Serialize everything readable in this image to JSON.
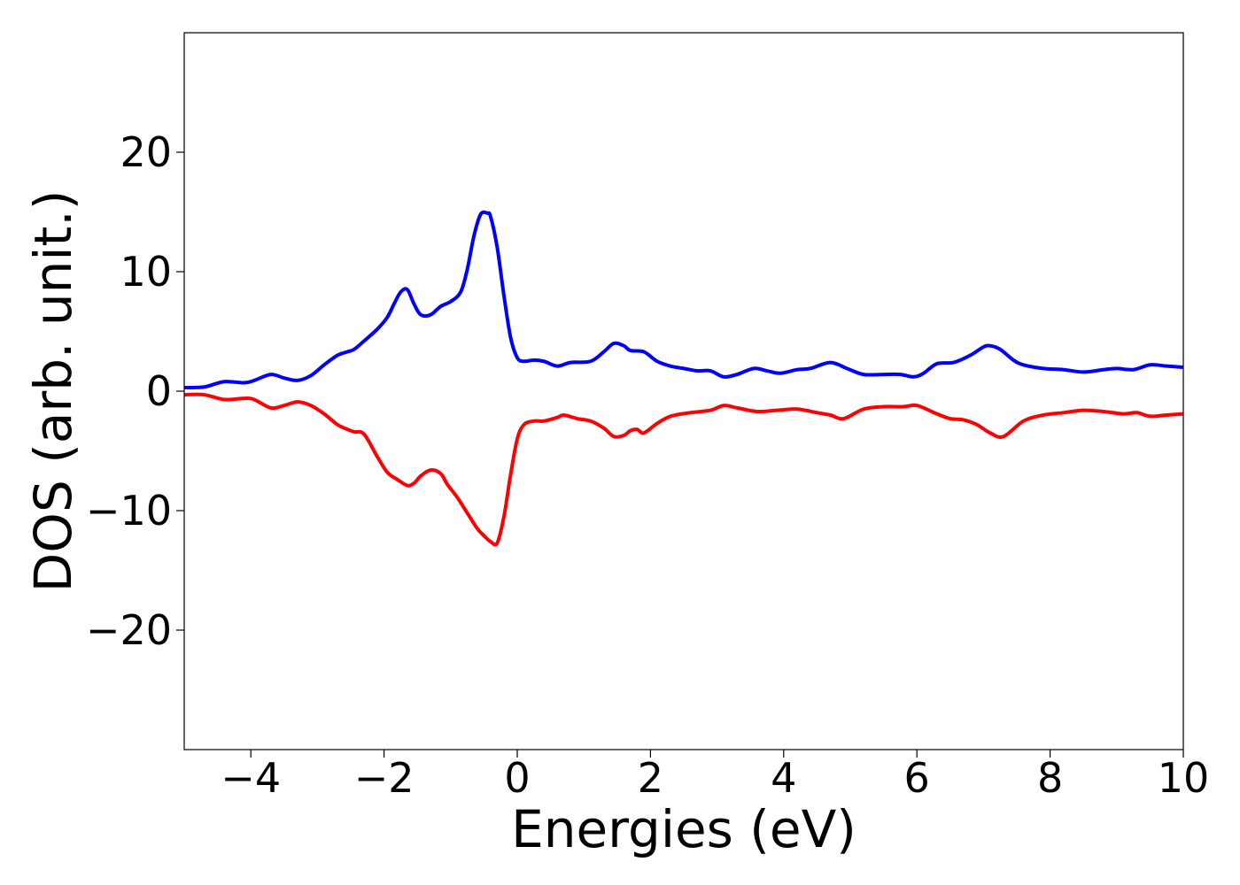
{
  "chart_data": {
    "type": "line",
    "title": "",
    "xlabel": "Energies (eV)",
    "ylabel": "DOS (arb. unit.)",
    "xlim": [
      -5,
      10
    ],
    "ylim": [
      -30,
      30
    ],
    "xticks": [
      -4,
      -2,
      0,
      2,
      4,
      6,
      8,
      10
    ],
    "xtick_labels": [
      "−4",
      "−2",
      "0",
      "2",
      "4",
      "6",
      "8",
      "10"
    ],
    "yticks": [
      -20,
      -10,
      0,
      10,
      20
    ],
    "ytick_labels": [
      "−20",
      "−10",
      "0",
      "10",
      "20"
    ],
    "grid": false,
    "series": [
      {
        "color": "#0000ff",
        "x": [
          -5.0,
          -4.7,
          -4.4,
          -4.1,
          -3.95,
          -3.7,
          -3.5,
          -3.3,
          -3.1,
          -2.9,
          -2.7,
          -2.55,
          -2.45,
          -2.3,
          -2.1,
          -1.95,
          -1.85,
          -1.75,
          -1.65,
          -1.55,
          -1.45,
          -1.3,
          -1.15,
          -1.0,
          -0.85,
          -0.75,
          -0.65,
          -0.55,
          -0.45,
          -0.4,
          -0.3,
          -0.2,
          -0.1,
          0.0,
          0.1,
          0.25,
          0.4,
          0.6,
          0.8,
          1.1,
          1.3,
          1.45,
          1.6,
          1.7,
          1.9,
          2.1,
          2.3,
          2.5,
          2.7,
          2.9,
          3.1,
          3.3,
          3.55,
          3.75,
          3.95,
          4.2,
          4.4,
          4.7,
          4.95,
          5.2,
          5.5,
          5.75,
          5.95,
          6.1,
          6.3,
          6.55,
          6.8,
          7.0,
          7.1,
          7.25,
          7.45,
          7.6,
          7.9,
          8.2,
          8.5,
          8.8,
          9.0,
          9.25,
          9.5,
          9.75,
          10.0
        ],
        "values": [
          0.3,
          0.35,
          0.8,
          0.7,
          0.9,
          1.4,
          1.1,
          0.9,
          1.3,
          2.2,
          3.0,
          3.3,
          3.5,
          4.2,
          5.2,
          6.2,
          7.3,
          8.3,
          8.5,
          7.3,
          6.4,
          6.4,
          7.1,
          7.5,
          8.3,
          10.2,
          13.0,
          14.8,
          14.9,
          14.6,
          12.0,
          8.0,
          4.5,
          2.8,
          2.5,
          2.6,
          2.5,
          2.1,
          2.4,
          2.5,
          3.3,
          4.0,
          3.8,
          3.4,
          3.3,
          2.5,
          2.1,
          1.9,
          1.7,
          1.7,
          1.2,
          1.4,
          1.9,
          1.7,
          1.5,
          1.8,
          1.9,
          2.4,
          1.9,
          1.4,
          1.4,
          1.4,
          1.2,
          1.5,
          2.3,
          2.4,
          3.0,
          3.7,
          3.8,
          3.5,
          2.6,
          2.2,
          1.9,
          1.8,
          1.6,
          1.8,
          1.9,
          1.8,
          2.2,
          2.1,
          2.0
        ]
      },
      {
        "color": "#ff0000",
        "x": [
          -5.0,
          -4.7,
          -4.4,
          -4.1,
          -3.95,
          -3.7,
          -3.5,
          -3.3,
          -3.1,
          -2.9,
          -2.7,
          -2.55,
          -2.45,
          -2.3,
          -2.1,
          -1.95,
          -1.8,
          -1.65,
          -1.55,
          -1.45,
          -1.3,
          -1.15,
          -1.05,
          -0.9,
          -0.75,
          -0.6,
          -0.5,
          -0.4,
          -0.3,
          -0.2,
          -0.1,
          0.0,
          0.1,
          0.25,
          0.4,
          0.6,
          0.7,
          0.9,
          1.1,
          1.3,
          1.45,
          1.6,
          1.7,
          1.8,
          1.9,
          2.1,
          2.3,
          2.6,
          2.9,
          3.1,
          3.3,
          3.6,
          3.9,
          4.2,
          4.5,
          4.7,
          4.9,
          5.2,
          5.5,
          5.8,
          6.0,
          6.3,
          6.5,
          6.7,
          6.9,
          7.1,
          7.3,
          7.6,
          7.9,
          8.2,
          8.5,
          8.8,
          9.1,
          9.3,
          9.5,
          9.75,
          10.0
        ],
        "values": [
          -0.3,
          -0.3,
          -0.7,
          -0.6,
          -0.7,
          -1.4,
          -1.2,
          -0.9,
          -1.2,
          -1.9,
          -2.8,
          -3.2,
          -3.4,
          -3.6,
          -5.5,
          -6.8,
          -7.4,
          -7.9,
          -7.7,
          -7.1,
          -6.6,
          -6.9,
          -7.8,
          -8.9,
          -10.2,
          -11.5,
          -12.1,
          -12.6,
          -12.7,
          -10.5,
          -7.0,
          -4.0,
          -2.8,
          -2.5,
          -2.5,
          -2.2,
          -2.0,
          -2.3,
          -2.5,
          -3.1,
          -3.8,
          -3.7,
          -3.3,
          -3.2,
          -3.5,
          -2.7,
          -2.1,
          -1.8,
          -1.6,
          -1.2,
          -1.4,
          -1.7,
          -1.6,
          -1.5,
          -1.8,
          -2.0,
          -2.3,
          -1.5,
          -1.3,
          -1.3,
          -1.2,
          -1.9,
          -2.3,
          -2.4,
          -2.8,
          -3.5,
          -3.8,
          -2.5,
          -2.0,
          -1.8,
          -1.6,
          -1.7,
          -1.9,
          -1.8,
          -2.1,
          -2.0,
          -1.9
        ]
      }
    ]
  }
}
